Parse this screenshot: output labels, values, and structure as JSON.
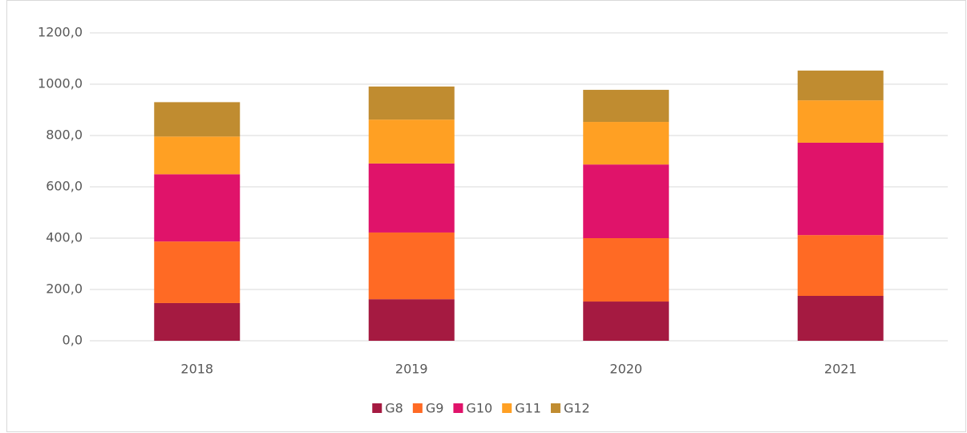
{
  "chart_data": {
    "type": "stacked_bar",
    "categories": [
      "2018",
      "2019",
      "2020",
      "2021"
    ],
    "series": [
      {
        "name": "G8",
        "color": "#a51a41",
        "values": [
          147,
          162,
          153,
          175
        ]
      },
      {
        "name": "G9",
        "color": "#ff6a24",
        "values": [
          240,
          260,
          247,
          237
        ]
      },
      {
        "name": "G10",
        "color": "#e0136a",
        "values": [
          262,
          269,
          287,
          360
        ]
      },
      {
        "name": "G11",
        "color": "#ffa023",
        "values": [
          147,
          171,
          166,
          165
        ]
      },
      {
        "name": "G12",
        "color": "#c08c30",
        "values": [
          134,
          129,
          125,
          116
        ]
      }
    ],
    "ylim": [
      0,
      1200
    ],
    "yticks": [
      {
        "value": 0,
        "label": "0,0"
      },
      {
        "value": 200,
        "label": "200,0"
      },
      {
        "value": 400,
        "label": "400,0"
      },
      {
        "value": 600,
        "label": "600,0"
      },
      {
        "value": 800,
        "label": "800,0"
      },
      {
        "value": 1000,
        "label": "1000,0"
      },
      {
        "value": 1200,
        "label": "1200,0"
      }
    ],
    "grid": true,
    "legend": "bottom"
  }
}
